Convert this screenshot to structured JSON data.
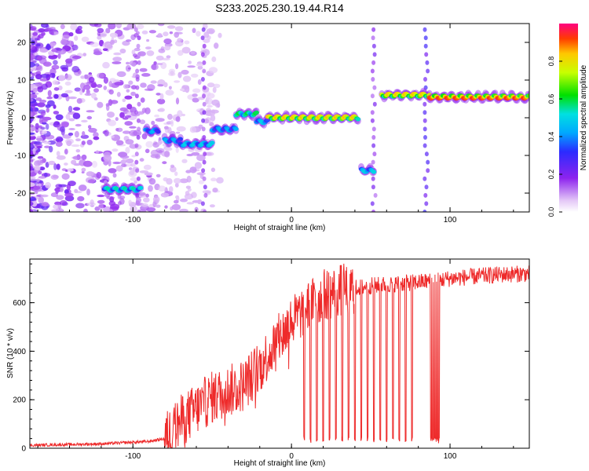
{
  "title": "S233.2025.230.19.44.R14",
  "chart_data": [
    {
      "type": "heatmap",
      "name": "spectrogram",
      "xlabel": "Height of straight line (km)",
      "ylabel": "Frequency (Hz)",
      "xlim": [
        -165,
        150
      ],
      "ylim": [
        -25,
        25
      ],
      "xticks": [
        -100,
        0,
        100
      ],
      "yticks": [
        -20,
        -10,
        0,
        10,
        20
      ],
      "colorbar": {
        "label": "Normalized spectral amplitude",
        "range": [
          0,
          1
        ],
        "ticks": [
          "0.0",
          "0.2",
          "0.4",
          "0.6",
          "0.8"
        ]
      },
      "tracks": [
        {
          "x_start": -118,
          "x_end": -95,
          "freq": -19,
          "amp": 0.55
        },
        {
          "x_start": -92,
          "x_end": -84,
          "freq": -3.5,
          "amp": 0.45
        },
        {
          "x_start": -80,
          "x_end": -70,
          "freq": -6,
          "amp": 0.45
        },
        {
          "x_start": -70,
          "x_end": -50,
          "freq": -7,
          "amp": 0.5
        },
        {
          "x_start": -50,
          "x_end": -35,
          "freq": -3,
          "amp": 0.45
        },
        {
          "x_start": -35,
          "x_end": -22,
          "freq": 1,
          "amp": 0.6
        },
        {
          "x_start": -22,
          "x_end": -15,
          "freq": -1,
          "amp": 0.5
        },
        {
          "x_start": -15,
          "x_end": 42,
          "freq": 0,
          "amp": 0.85
        },
        {
          "x_start": 44,
          "x_end": 52,
          "freq": -14,
          "amp": 0.5
        },
        {
          "x_start": 57,
          "x_end": 87,
          "freq": 6,
          "amp": 0.85
        },
        {
          "x_start": 87,
          "x_end": 150,
          "freq": 5.5,
          "amp": 0.95
        }
      ]
    },
    {
      "type": "line",
      "name": "snr",
      "xlabel": "Height of straight line (km)",
      "ylabel": "SNR (10 * v/v)",
      "xlim": [
        -165,
        150
      ],
      "ylim": [
        0,
        780
      ],
      "xticks": [
        -100,
        0,
        100
      ],
      "yticks": [
        0,
        200,
        400,
        600
      ],
      "color": "#ee2a2a",
      "envelope": {
        "x": [
          -165,
          -120,
          -90,
          -80,
          -70,
          -50,
          -30,
          -20,
          -10,
          0,
          10,
          20,
          30,
          40,
          50,
          60,
          70,
          80,
          90,
          100,
          110,
          120,
          130,
          140,
          150
        ],
        "y": [
          12,
          18,
          28,
          40,
          110,
          210,
          260,
          340,
          430,
          520,
          580,
          630,
          650,
          660,
          670,
          675,
          680,
          685,
          690,
          700,
          705,
          710,
          715,
          718,
          720
        ]
      },
      "dropouts_x": [
        8,
        12,
        16,
        20,
        24,
        28,
        32,
        36,
        40,
        44,
        48,
        52,
        56,
        60,
        64,
        68,
        72,
        76,
        88,
        89,
        90,
        91,
        92,
        93
      ]
    }
  ]
}
